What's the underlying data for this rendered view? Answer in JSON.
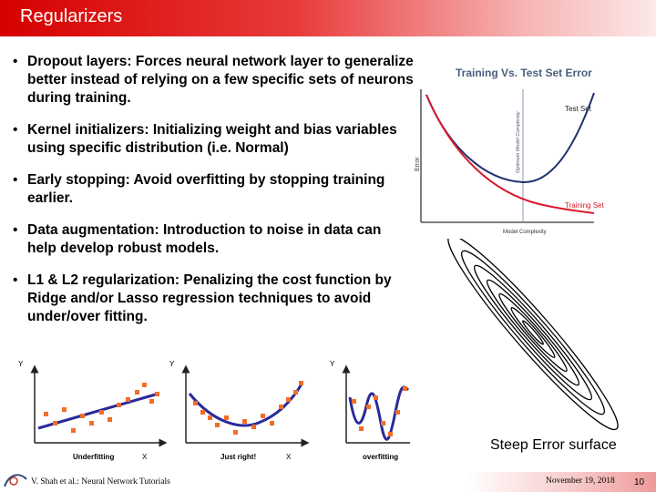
{
  "slide": {
    "title": "Regularizers",
    "bullets": [
      "Dropout layers: Forces neural network layer to generalize better instead of relying on a few specific sets of neurons during training.",
      "Kernel initializers: Initializing weight and bias variables using specific distribution (i.e. Normal)",
      "Early stopping: Avoid overfitting by stopping training earlier.",
      "Data augmentation: Introduction to noise in data can help develop robust models.",
      "L1 & L2 regularization: Penalizing the cost function by Ridge and/or Lasso regression techniques to avoid under/over fitting."
    ]
  },
  "error_figure": {
    "title": "Training Vs. Test Set Error",
    "test_label": "Test Set",
    "train_label": "Training Set",
    "optimal_label": "Optimum Model Complexity",
    "y_label": "Error",
    "x_label": "Model Complexity",
    "colors": {
      "test": "#1f2f6e",
      "train": "#d81b2a",
      "title": "#4a607e"
    }
  },
  "fit_figures": {
    "y_axis": "Y",
    "x_axis": "X",
    "panels": [
      "Underfitting",
      "Just right!",
      "overfitting"
    ],
    "colors": {
      "curve": "#2a2a9a",
      "points": "#f26d2a"
    }
  },
  "error_surface": {
    "caption": "Steep Error surface"
  },
  "footer": {
    "author": "V. Shah et al.: Neural Network Tutorials",
    "date": "November 19, 2018",
    "page": "10"
  }
}
